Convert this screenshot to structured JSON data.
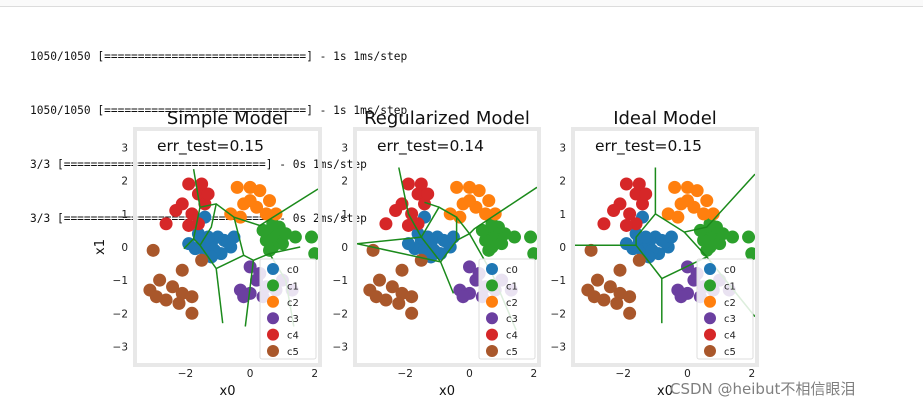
{
  "log_lines": [
    {
      "prefix": "1050/1050",
      "bar": "==============================",
      "suffix": "- 1s 1ms/step"
    },
    {
      "prefix": "1050/1050",
      "bar": "==============================",
      "suffix": "- 1s 1ms/step"
    },
    {
      "prefix": "3/3",
      "bar": "==============================",
      "suffix": "- 0s 1ms/step"
    },
    {
      "prefix": "3/3",
      "bar": "==============================",
      "suffix": "- 0s 2ms/step"
    }
  ],
  "watermark": "CSDN @heibut不相信眼泪",
  "colors": {
    "c0": "#1f77b4",
    "c1": "#2ca02c",
    "c2": "#ff7f0e",
    "c3": "#6b3fa0",
    "c4": "#d62728",
    "c5": "#a9572b",
    "boundary": "#1b8a1b",
    "frame": "#e8e8e8"
  },
  "chart_data": [
    {
      "type": "scatter",
      "title": "Simple Model",
      "annotation": "err_test=0.15",
      "xlabel": "x0",
      "ylabel": "x1",
      "xlim": [
        -3.5,
        2.1
      ],
      "ylim": [
        -3.5,
        3.5
      ],
      "xticks": [
        "−2",
        "0",
        "2"
      ],
      "yticks": [
        "3",
        "2",
        "1",
        "0",
        "−1",
        "−2",
        "−3"
      ],
      "grid": false,
      "legend": "lower-right",
      "legend_entries": [
        "c0",
        "c1",
        "c2",
        "c3",
        "c4",
        "c5"
      ],
      "decision_boundaries": [
        [
          [
            -1.75,
            2.35
          ],
          [
            -1.55,
            1.2
          ],
          [
            -1.75,
            0.25
          ],
          [
            -2.05,
            -0.05
          ]
        ],
        [
          [
            -1.55,
            1.2
          ],
          [
            -1.05,
            1.3
          ],
          [
            -0.5,
            0.9
          ],
          [
            0.3,
            0.65
          ],
          [
            2.1,
            1.75
          ]
        ],
        [
          [
            -1.05,
            1.3
          ],
          [
            -1.2,
            0.6
          ],
          [
            -1.55,
            0.05
          ],
          [
            -1.75,
            0.25
          ]
        ],
        [
          [
            -0.5,
            0.9
          ],
          [
            -0.2,
            -0.25
          ],
          [
            0.1,
            -0.4
          ],
          [
            0.6,
            -0.2
          ],
          [
            1.55,
            0.0
          ]
        ],
        [
          [
            -1.55,
            0.05
          ],
          [
            -1.05,
            -0.65
          ],
          [
            -0.2,
            -0.25
          ]
        ],
        [
          [
            -1.05,
            -0.65
          ],
          [
            -0.85,
            -2.3
          ]
        ],
        [
          [
            0.1,
            -0.4
          ],
          [
            -0.15,
            -2.4
          ]
        ],
        [
          [
            0.6,
            -0.2
          ],
          [
            1.1,
            -1.0
          ],
          [
            1.35,
            -2.4
          ]
        ]
      ]
    },
    {
      "type": "scatter",
      "title": "Regularized Model",
      "annotation": "err_test=0.14",
      "xlabel": "x0",
      "ylabel": "",
      "xlim": [
        -3.5,
        2.1
      ],
      "ylim": [
        -3.5,
        3.5
      ],
      "xticks": [
        "−2",
        "0",
        "2"
      ],
      "yticks": [
        "3",
        "2",
        "1",
        "0",
        "−1",
        "−2",
        "−3"
      ],
      "grid": false,
      "legend": "lower-right",
      "legend_entries": [
        "c0",
        "c1",
        "c2",
        "c3",
        "c4",
        "c5"
      ],
      "decision_boundaries": [
        [
          [
            -2.2,
            2.4
          ],
          [
            -1.9,
            1.0
          ],
          [
            -1.5,
            0.3
          ],
          [
            -3.5,
            0.1
          ]
        ],
        [
          [
            -1.5,
            0.3
          ],
          [
            -0.95,
            1.2
          ],
          [
            -0.4,
            0.9
          ],
          [
            -0.4,
            0.2
          ],
          [
            -0.9,
            -0.45
          ],
          [
            -1.5,
            0.3
          ]
        ],
        [
          [
            -0.95,
            1.2
          ],
          [
            -1.4,
            1.35
          ]
        ],
        [
          [
            -0.4,
            0.9
          ],
          [
            0.0,
            0.4
          ],
          [
            0.15,
            0.55
          ],
          [
            2.1,
            1.8
          ]
        ],
        [
          [
            -0.4,
            0.2
          ],
          [
            0.0,
            0.4
          ]
        ],
        [
          [
            -0.9,
            -0.45
          ],
          [
            -0.5,
            -1.4
          ]
        ],
        [
          [
            0.0,
            0.4
          ],
          [
            0.7,
            -0.8
          ],
          [
            1.45,
            -2.5
          ]
        ],
        [
          [
            -0.9,
            -0.45
          ],
          [
            -3.5,
            0.1
          ]
        ]
      ]
    },
    {
      "type": "scatter",
      "title": "Ideal Model",
      "annotation": "err_test=0.15",
      "xlabel": "x0",
      "ylabel": "",
      "xlim": [
        -3.5,
        2.1
      ],
      "ylim": [
        -3.5,
        3.5
      ],
      "xticks": [
        "−2",
        "0",
        "2"
      ],
      "yticks": [
        "3",
        "2",
        "1",
        "0",
        "−1",
        "−2",
        "−3"
      ],
      "grid": false,
      "legend": "lower-right",
      "legend_entries": [
        "c0",
        "c1",
        "c2",
        "c3",
        "c4",
        "c5"
      ],
      "decision_boundaries": [
        [
          [
            -1.0,
            2.4
          ],
          [
            -1.0,
            1.0
          ],
          [
            -1.6,
            0.3
          ],
          [
            -1.6,
            0.05
          ],
          [
            -3.5,
            0.05
          ]
        ],
        [
          [
            -1.0,
            1.0
          ],
          [
            -0.1,
            0.45
          ],
          [
            0.6,
            0.6
          ],
          [
            2.1,
            2.2
          ]
        ],
        [
          [
            -0.1,
            0.45
          ],
          [
            0.6,
            -0.3
          ],
          [
            2.1,
            -2.1
          ]
        ],
        [
          [
            -1.6,
            0.05
          ],
          [
            -0.8,
            -0.95
          ],
          [
            0.6,
            -0.3
          ]
        ],
        [
          [
            -0.8,
            -0.95
          ],
          [
            -0.8,
            -2.3
          ]
        ]
      ]
    }
  ],
  "scatter_points": {
    "c0": [
      [
        -1.5,
        0.2
      ],
      [
        -1.7,
        -0.05
      ],
      [
        -1.4,
        -0.1
      ],
      [
        -1.2,
        0.1
      ],
      [
        -1.0,
        0.3
      ],
      [
        -0.8,
        0.2
      ],
      [
        -0.6,
        0.0
      ],
      [
        -0.9,
        -0.2
      ],
      [
        -1.3,
        0.3
      ],
      [
        -1.6,
        0.4
      ],
      [
        -1.1,
        -0.1
      ],
      [
        -0.7,
        0.15
      ],
      [
        -1.4,
        0.9
      ],
      [
        -0.5,
        0.3
      ],
      [
        -1.9,
        0.1
      ],
      [
        -1.2,
        -0.3
      ]
    ],
    "c1": [
      [
        0.6,
        0.4
      ],
      [
        0.8,
        0.3
      ],
      [
        1.0,
        0.1
      ],
      [
        0.7,
        0.0
      ],
      [
        0.5,
        0.2
      ],
      [
        1.1,
        0.4
      ],
      [
        0.9,
        0.6
      ],
      [
        1.4,
        0.3
      ],
      [
        0.4,
        0.5
      ],
      [
        0.7,
        0.7
      ],
      [
        1.9,
        0.3
      ],
      [
        2.0,
        -0.2
      ],
      [
        0.6,
        -0.1
      ]
    ],
    "c2": [
      [
        -0.4,
        1.8
      ],
      [
        0.0,
        1.8
      ],
      [
        0.3,
        1.7
      ],
      [
        0.6,
        1.4
      ],
      [
        0.8,
        1.0
      ],
      [
        -0.2,
        1.3
      ],
      [
        0.2,
        1.2
      ],
      [
        -0.6,
        1.0
      ],
      [
        -0.3,
        0.9
      ],
      [
        0.5,
        1.0
      ],
      [
        0.0,
        1.4
      ]
    ],
    "c3": [
      [
        0.0,
        -0.6
      ],
      [
        0.2,
        -1.0
      ],
      [
        0.5,
        -1.2
      ],
      [
        0.0,
        -1.4
      ],
      [
        -0.3,
        -1.3
      ],
      [
        0.8,
        -1.3
      ],
      [
        0.4,
        -1.5
      ],
      [
        -0.2,
        -1.5
      ],
      [
        0.3,
        -0.8
      ],
      [
        1.3,
        -1.3
      ],
      [
        1.0,
        -1.0
      ]
    ],
    "c4": [
      [
        -1.9,
        1.9
      ],
      [
        -1.6,
        1.6
      ],
      [
        -2.1,
        1.3
      ],
      [
        -1.8,
        1.0
      ],
      [
        -1.4,
        1.3
      ],
      [
        -2.3,
        1.1
      ],
      [
        -1.5,
        1.9
      ],
      [
        -2.6,
        0.7
      ],
      [
        -1.6,
        0.7
      ],
      [
        -1.3,
        1.6
      ],
      [
        -1.9,
        0.65
      ]
    ],
    "c5": [
      [
        -3.0,
        -0.1
      ],
      [
        -2.1,
        -0.7
      ],
      [
        -2.8,
        -1.0
      ],
      [
        -3.1,
        -1.3
      ],
      [
        -2.6,
        -1.6
      ],
      [
        -2.1,
        -1.4
      ],
      [
        -2.4,
        -1.2
      ],
      [
        -1.8,
        -1.5
      ],
      [
        -2.9,
        -1.5
      ],
      [
        -2.2,
        -1.7
      ],
      [
        -1.5,
        -0.4
      ],
      [
        -1.8,
        -2.0
      ]
    ]
  }
}
